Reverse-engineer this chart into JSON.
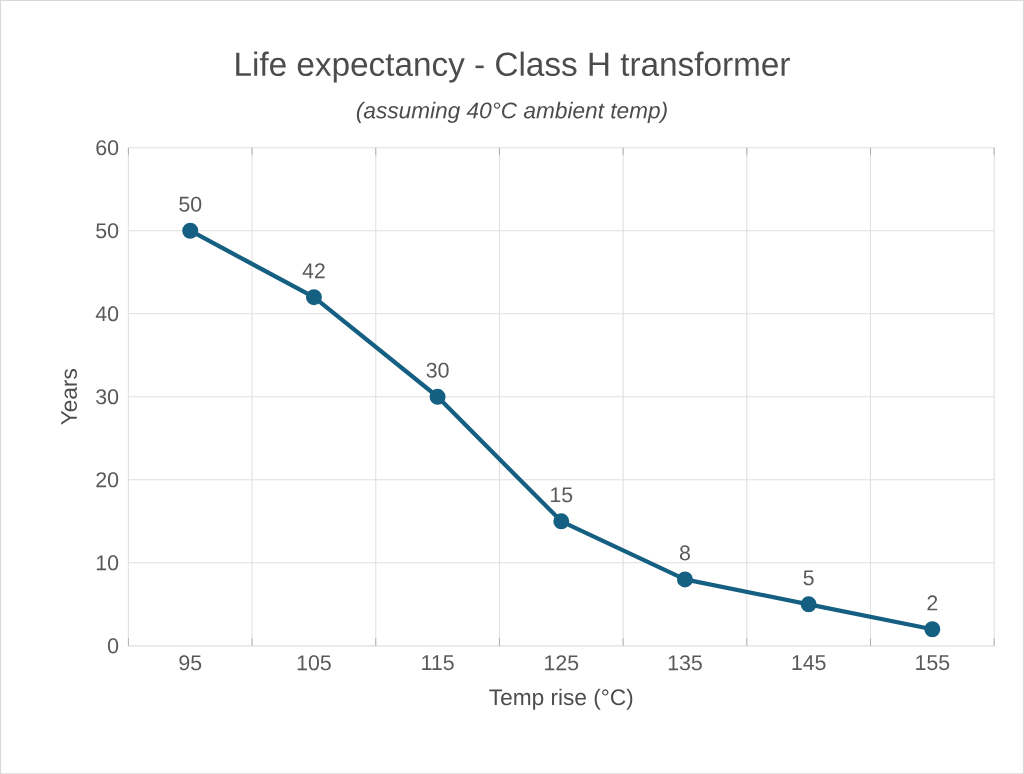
{
  "chart_data": {
    "type": "line",
    "title": "Life expectancy - Class H transformer",
    "subtitle": "*(assuming 40°C ambient temp)*",
    "xlabel": "Temp rise (°C)",
    "ylabel": "Years",
    "categories": [
      "95",
      "105",
      "115",
      "125",
      "135",
      "145",
      "155"
    ],
    "series": [
      {
        "color": "#156082",
        "values": [
          50,
          42,
          30,
          15,
          8,
          5,
          2
        ]
      }
    ],
    "ylim": [
      0,
      60
    ],
    "yticks": [
      0,
      10,
      20,
      30,
      40,
      50,
      60
    ],
    "grid": true,
    "marker": "circle",
    "line_style": "solid",
    "data_labels": true
  }
}
